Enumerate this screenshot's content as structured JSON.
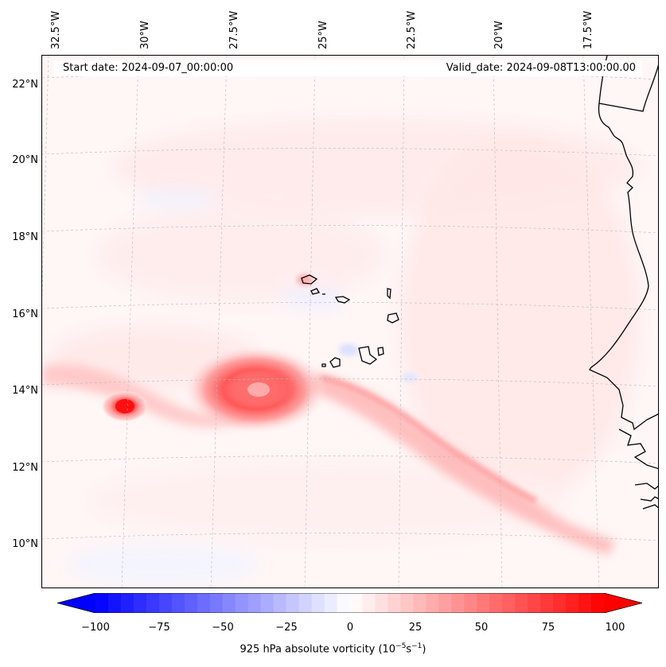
{
  "header": {
    "start_label": "Start date: 2024-09-07_00:00:00",
    "valid_label": "Valid_date: 2024-09-08T13:00:00.00"
  },
  "longitude_ticks": [
    "32.5°W",
    "30°W",
    "27.5°W",
    "25°W",
    "22.5°W",
    "20°W",
    "17.5°W"
  ],
  "latitude_ticks": [
    "22°N",
    "20°N",
    "18°N",
    "16°N",
    "14°N",
    "12°N",
    "10°N"
  ],
  "colorbar": {
    "ticks": [
      "−100",
      "−75",
      "−50",
      "−25",
      "0",
      "25",
      "50",
      "75",
      "100"
    ],
    "title_prefix": "925 hPa absolute vorticity (10",
    "title_exp1": "−5",
    "title_mid": "s",
    "title_exp2": "−1",
    "title_suffix": ")",
    "min": -100,
    "max": 100,
    "extend": "both",
    "colormap": "bwr",
    "color_low": "#0000ff",
    "color_mid": "#ffffff",
    "color_high": "#ff0000"
  },
  "map": {
    "projection": "conic",
    "lon_range": [
      "33°W",
      "16°W"
    ],
    "lat_range": [
      "9°N",
      "23°N"
    ],
    "gridlines": true,
    "coastlines": true
  }
}
